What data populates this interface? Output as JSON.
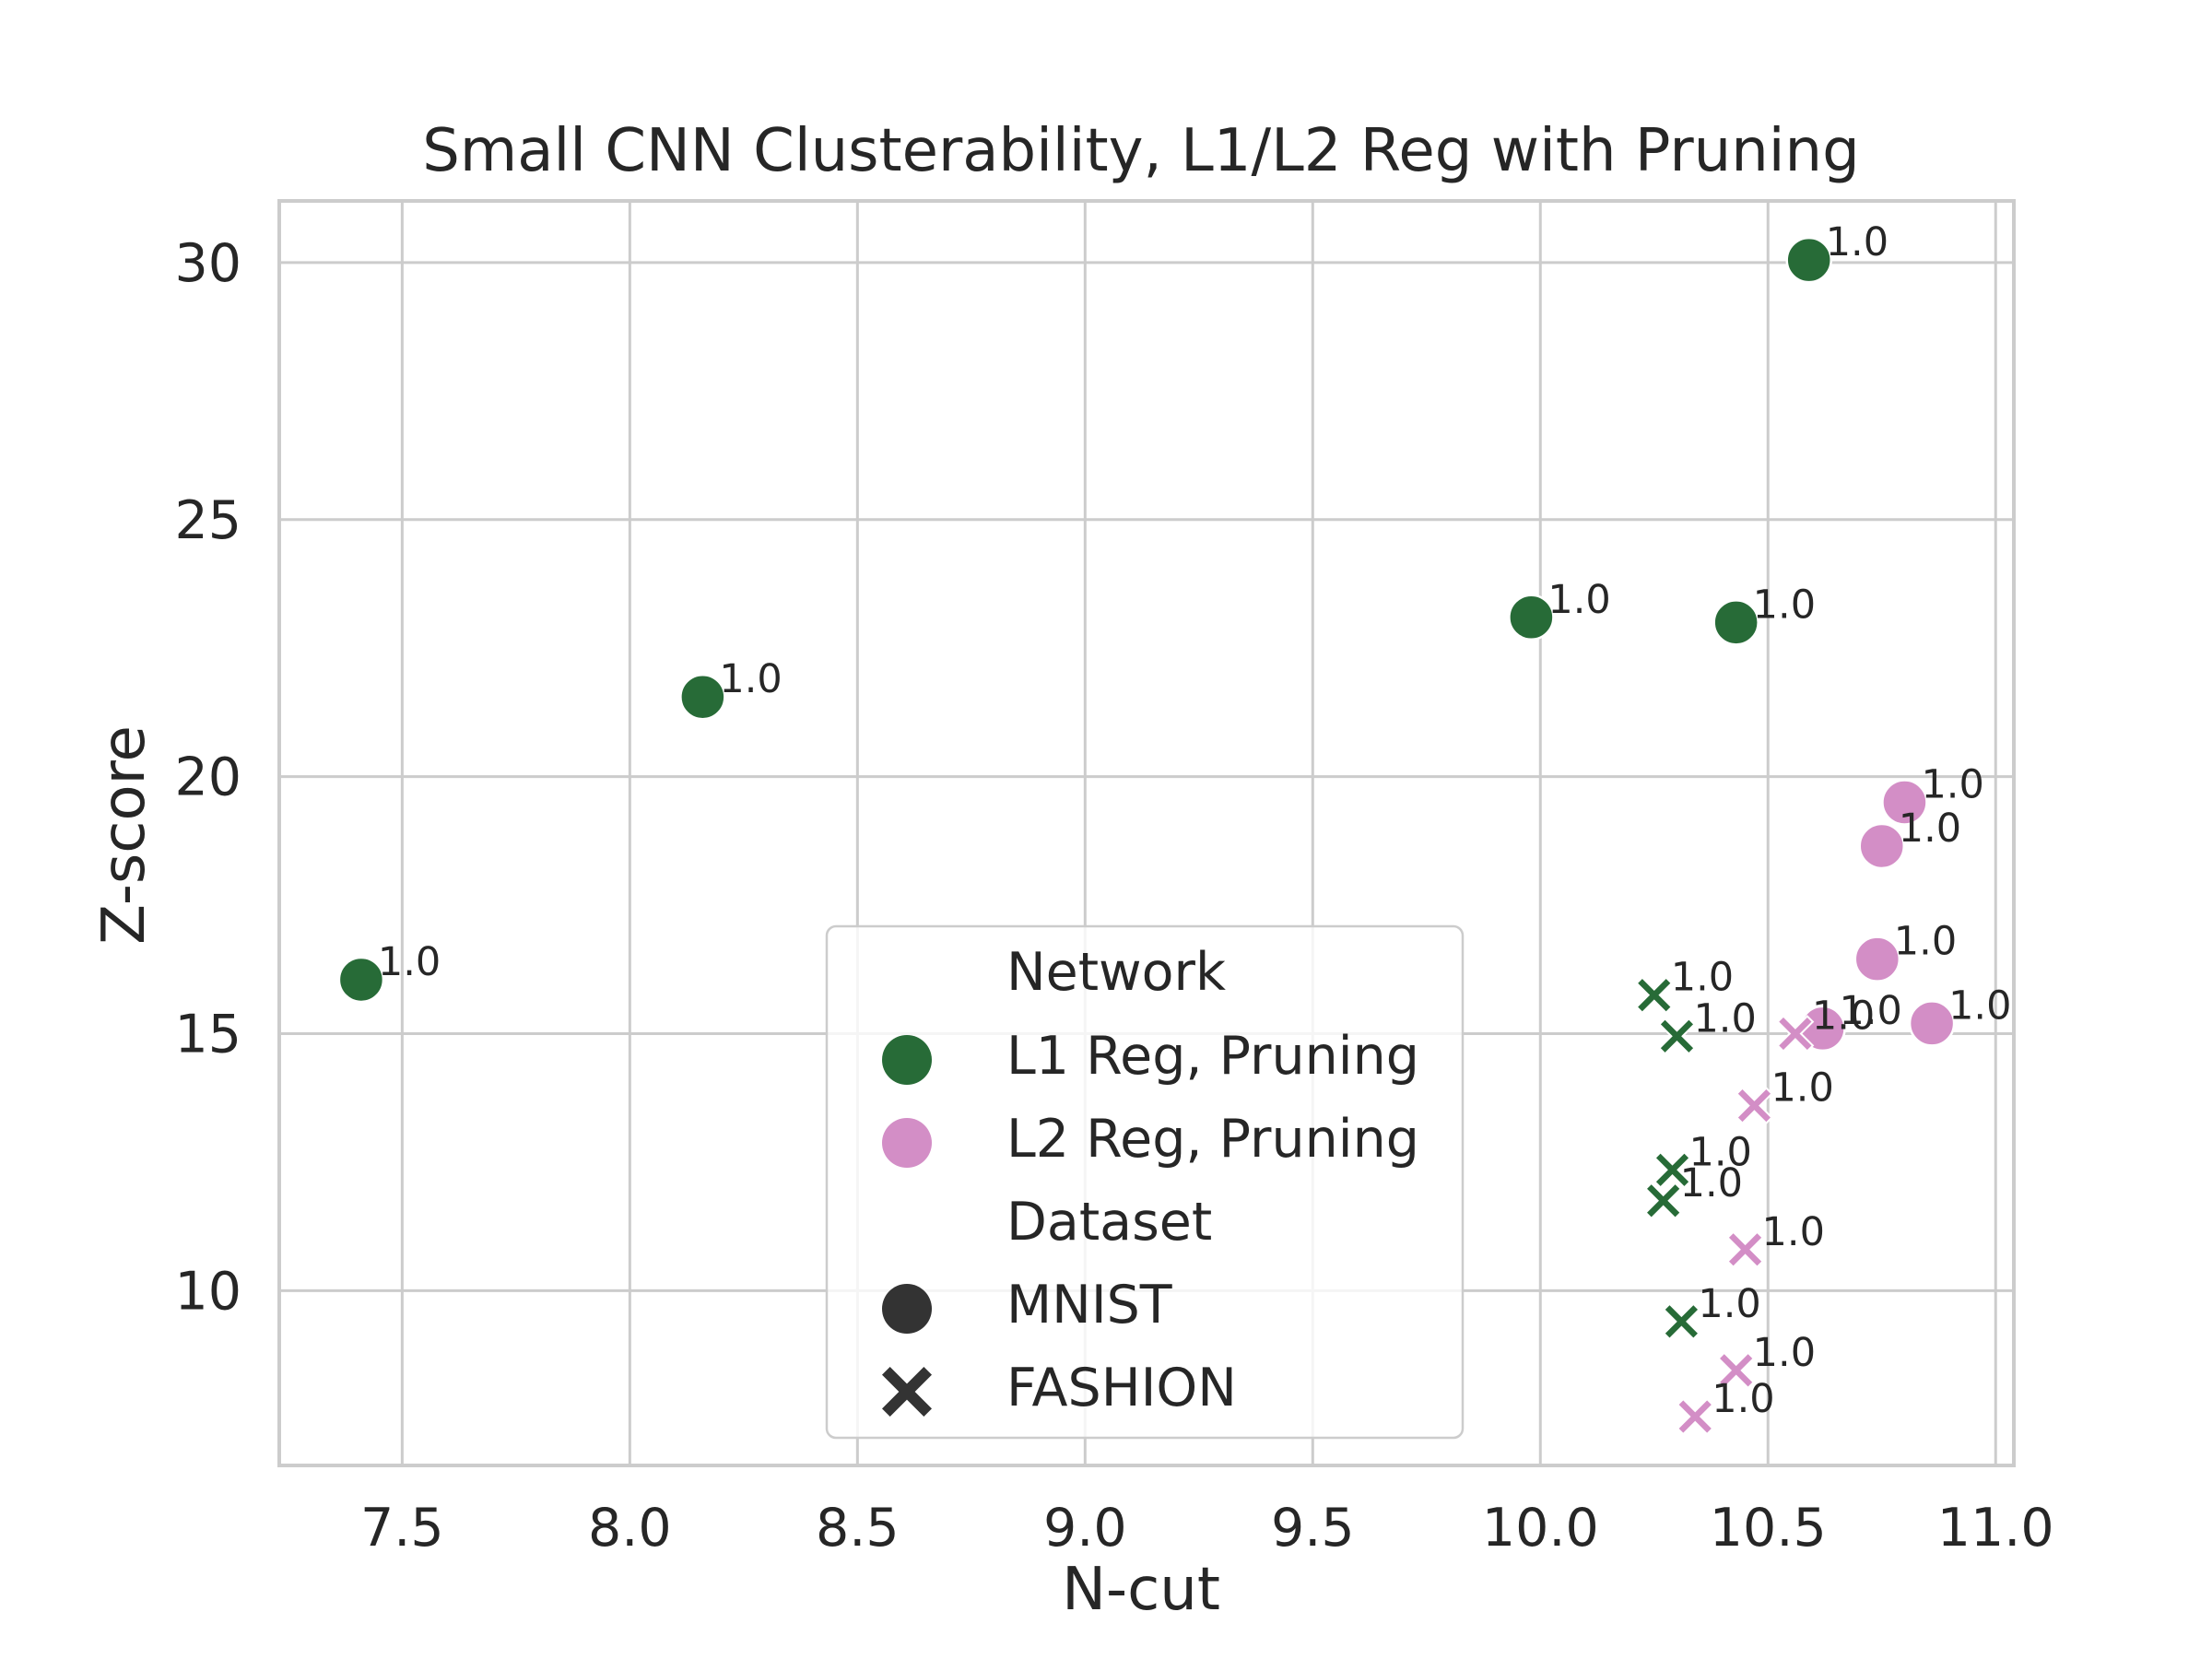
{
  "chart_data": {
    "type": "scatter",
    "title": "Small CNN Clusterability, L1/L2 Reg with Pruning",
    "xlabel": "N-cut",
    "ylabel": "Z-score",
    "xlim": [
      7.23,
      11.04
    ],
    "ylim": [
      6.6,
      31.2
    ],
    "xticks": [
      "7.5",
      "8.0",
      "8.5",
      "9.0",
      "9.5",
      "10.0",
      "10.5",
      "11.0"
    ],
    "yticks": [
      "10",
      "15",
      "20",
      "25",
      "30"
    ],
    "grid": true,
    "legend_position": "lower-center",
    "colors": {
      "L1 Reg, Pruning": "#276b37",
      "L2 Reg, Pruning": "#d38ec6",
      "dataset_marker": "#333333"
    },
    "legend": {
      "hue_title": "Network",
      "style_title": "Dataset",
      "hue_entries": [
        "L1 Reg, Pruning",
        "L2 Reg, Pruning"
      ],
      "style_entries": [
        {
          "label": "MNIST",
          "marker": "circle"
        },
        {
          "label": "FASHION",
          "marker": "x"
        }
      ]
    },
    "series": [
      {
        "network": "L1 Reg, Pruning",
        "dataset": "MNIST",
        "marker": "circle",
        "points": [
          {
            "x": 7.41,
            "y": 16.05,
            "label": "1.0"
          },
          {
            "x": 8.16,
            "y": 21.55,
            "label": "1.0"
          },
          {
            "x": 9.98,
            "y": 23.1,
            "label": "1.0"
          },
          {
            "x": 10.43,
            "y": 23.0,
            "label": "1.0"
          },
          {
            "x": 10.59,
            "y": 30.05,
            "label": "1.0"
          }
        ]
      },
      {
        "network": "L1 Reg, Pruning",
        "dataset": "FASHION",
        "marker": "x",
        "points": [
          {
            "x": 10.25,
            "y": 15.75,
            "label": "1.0"
          },
          {
            "x": 10.3,
            "y": 14.95,
            "label": "1.0"
          },
          {
            "x": 10.29,
            "y": 12.35,
            "label": "1.0"
          },
          {
            "x": 10.27,
            "y": 11.75,
            "label": "1.0"
          },
          {
            "x": 10.31,
            "y": 9.4,
            "label": "1.0"
          }
        ]
      },
      {
        "network": "L2 Reg, Pruning",
        "dataset": "MNIST",
        "marker": "circle",
        "points": [
          {
            "x": 10.8,
            "y": 19.5,
            "label": "1.0"
          },
          {
            "x": 10.75,
            "y": 18.65,
            "label": "1.0"
          },
          {
            "x": 10.74,
            "y": 16.45,
            "label": "1.0"
          },
          {
            "x": 10.62,
            "y": 15.1,
            "label": "1.0"
          },
          {
            "x": 10.86,
            "y": 15.2,
            "label": "1.0"
          }
        ]
      },
      {
        "network": "L2 Reg, Pruning",
        "dataset": "FASHION",
        "marker": "x",
        "points": [
          {
            "x": 10.56,
            "y": 15.0,
            "label": "1.0"
          },
          {
            "x": 10.47,
            "y": 13.6,
            "label": "1.0"
          },
          {
            "x": 10.45,
            "y": 10.8,
            "label": "1.0"
          },
          {
            "x": 10.43,
            "y": 8.45,
            "label": "1.0"
          },
          {
            "x": 10.34,
            "y": 7.55,
            "label": "1.0"
          }
        ]
      }
    ]
  }
}
